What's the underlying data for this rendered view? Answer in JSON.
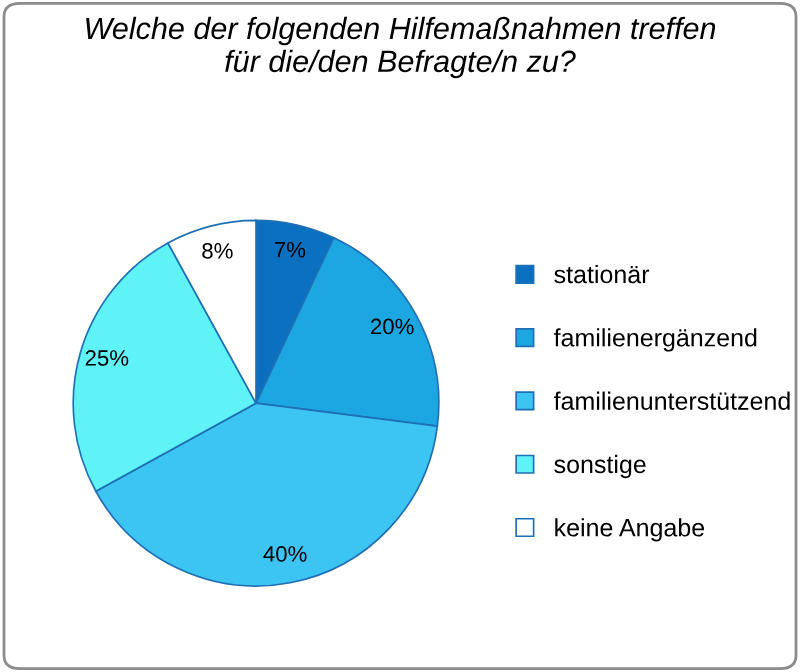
{
  "chart_data": {
    "type": "pie",
    "title": "Welche der folgenden Hilfemaßnahmen treffen\nfür die/den Befragte/n zu?",
    "categories": [
      "stationär",
      "familienergänzend",
      "familienunterstützend",
      "sonstige",
      "keine Angabe"
    ],
    "values": [
      7,
      20,
      40,
      25,
      8
    ],
    "colors": [
      "#0b70c0",
      "#1ca6e2",
      "#3cc4f2",
      "#5ff3f8",
      "#ffffff"
    ],
    "value_labels": [
      "7%",
      "20%",
      "40%",
      "25%",
      "8%"
    ],
    "legend": "right"
  }
}
